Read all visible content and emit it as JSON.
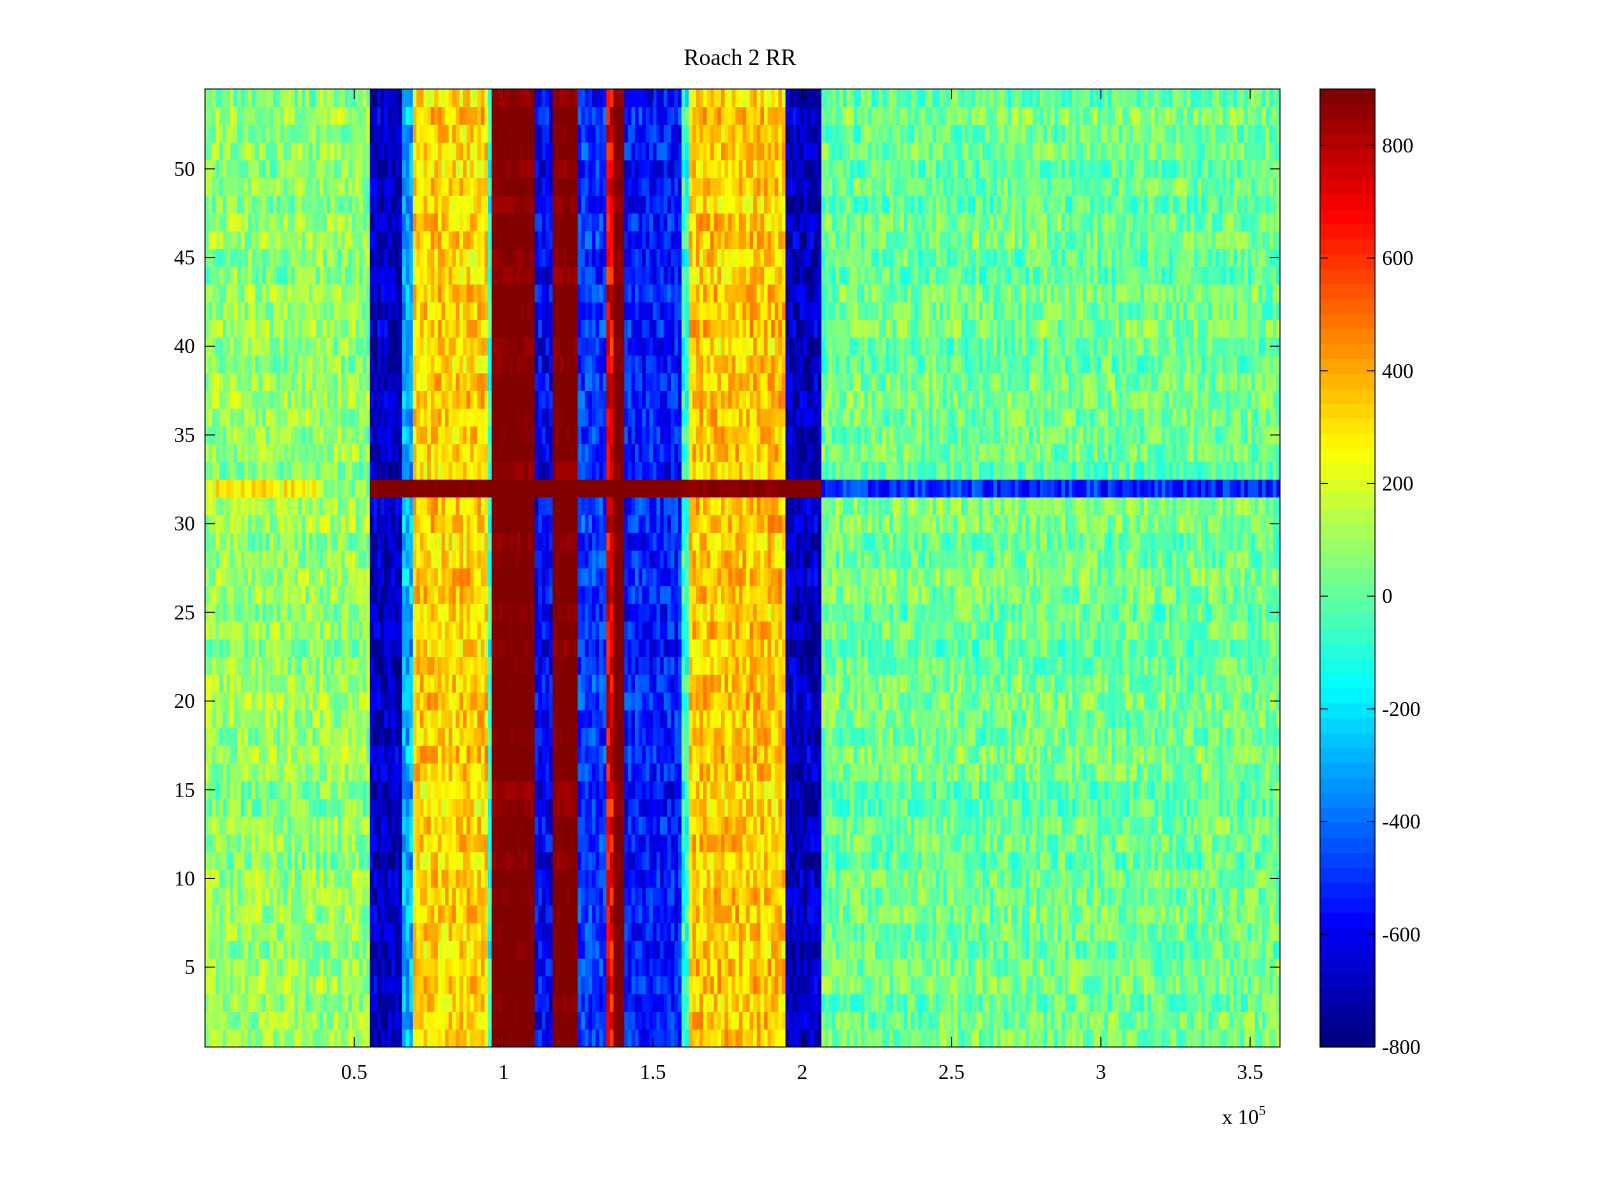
{
  "chart_data": {
    "type": "heatmap",
    "title": "Roach 2 RR",
    "xlabel": "",
    "ylabel": "",
    "x_multiplier_label": "x 10",
    "x_multiplier_exponent": "5",
    "xlim": [
      0,
      360000
    ],
    "ylim": [
      0.5,
      54.5
    ],
    "x_ticks": [
      0.5,
      1,
      1.5,
      2,
      2.5,
      3,
      3.5
    ],
    "x_tick_labels": [
      "0.5",
      "1",
      "1.5",
      "2",
      "2.5",
      "3",
      "3.5"
    ],
    "y_ticks": [
      5,
      10,
      15,
      20,
      25,
      30,
      35,
      40,
      45,
      50
    ],
    "y_tick_labels": [
      "5",
      "10",
      "15",
      "20",
      "25",
      "30",
      "35",
      "40",
      "45",
      "50"
    ],
    "rows": 54,
    "row_anomaly": {
      "row": 32,
      "note": "row 32 deviates across all columns"
    },
    "colormap": "jet",
    "colorbar": {
      "range": [
        -800,
        900
      ],
      "ticks": [
        -800,
        -600,
        -400,
        -200,
        0,
        200,
        400,
        600,
        800
      ],
      "tick_labels": [
        "-800",
        "-600",
        "-400",
        "-200",
        "0",
        "200",
        "400",
        "600",
        "800"
      ]
    },
    "column_bands": [
      {
        "x_start": 0,
        "x_end": 55000,
        "value": 80
      },
      {
        "x_start": 55000,
        "x_end": 66000,
        "value": -700
      },
      {
        "x_start": 66000,
        "x_end": 70000,
        "value": -300
      },
      {
        "x_start": 70000,
        "x_end": 95000,
        "value": 330
      },
      {
        "x_start": 95000,
        "x_end": 96500,
        "value": -100
      },
      {
        "x_start": 96500,
        "x_end": 110000,
        "value": 900
      },
      {
        "x_start": 110000,
        "x_end": 117000,
        "value": -600
      },
      {
        "x_start": 117000,
        "x_end": 125000,
        "value": 900
      },
      {
        "x_start": 125000,
        "x_end": 135000,
        "value": -500
      },
      {
        "x_start": 135000,
        "x_end": 137000,
        "value": 700
      },
      {
        "x_start": 137000,
        "x_end": 140000,
        "value": 900
      },
      {
        "x_start": 140000,
        "x_end": 160000,
        "value": -550
      },
      {
        "x_start": 160000,
        "x_end": 162000,
        "value": -100
      },
      {
        "x_start": 162000,
        "x_end": 195000,
        "value": 350
      },
      {
        "x_start": 195000,
        "x_end": 207000,
        "value": -700
      },
      {
        "x_start": 207000,
        "x_end": 360000,
        "value": 20
      }
    ],
    "row_32_values": [
      {
        "x_start": 0,
        "x_end": 40000,
        "value": 230
      },
      {
        "x_start": 40000,
        "x_end": 55000,
        "value": 50
      },
      {
        "x_start": 55000,
        "x_end": 95000,
        "value": 880
      },
      {
        "x_start": 95000,
        "x_end": 160000,
        "value": 900
      },
      {
        "x_start": 160000,
        "x_end": 195000,
        "value": 860
      },
      {
        "x_start": 195000,
        "x_end": 207000,
        "value": 880
      },
      {
        "x_start": 207000,
        "x_end": 360000,
        "value": -550
      }
    ],
    "grid": false,
    "legend": "colorbar-right"
  }
}
